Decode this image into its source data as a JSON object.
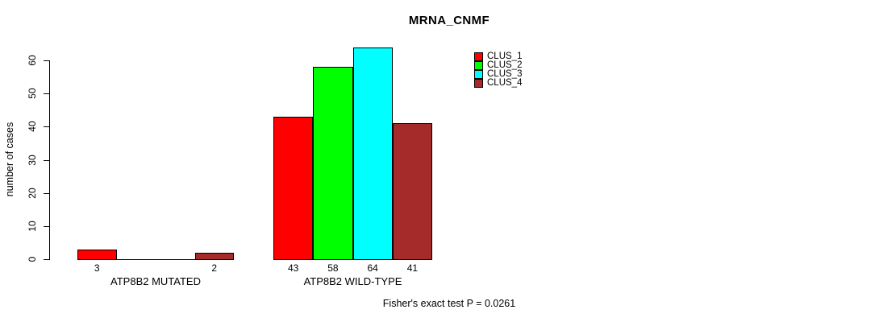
{
  "chart_data": {
    "type": "bar",
    "title": "MRNA_CNMF",
    "xlabel": "",
    "ylabel": "number of cases",
    "ylim": [
      0,
      60
    ],
    "yticks": [
      0,
      10,
      20,
      30,
      40,
      50,
      60
    ],
    "grid": false,
    "legend_position": "top-right-inside",
    "categories": [
      "ATP8B2 MUTATED",
      "ATP8B2 WILD-TYPE"
    ],
    "series": [
      {
        "name": "CLUS_1",
        "color": "#ff0000",
        "values": [
          3,
          43
        ]
      },
      {
        "name": "CLUS_2",
        "color": "#00ff00",
        "values": [
          0,
          58
        ]
      },
      {
        "name": "CLUS_3",
        "color": "#00ffff",
        "values": [
          0,
          64
        ]
      },
      {
        "name": "CLUS_4",
        "color": "#a52a2a",
        "values": [
          2,
          41
        ]
      }
    ],
    "bar_value_labels": [
      [
        "3",
        "",
        "",
        "2"
      ],
      [
        "43",
        "58",
        "64",
        "41"
      ]
    ],
    "annotation": "Fisher's exact test P = 0.0261"
  }
}
